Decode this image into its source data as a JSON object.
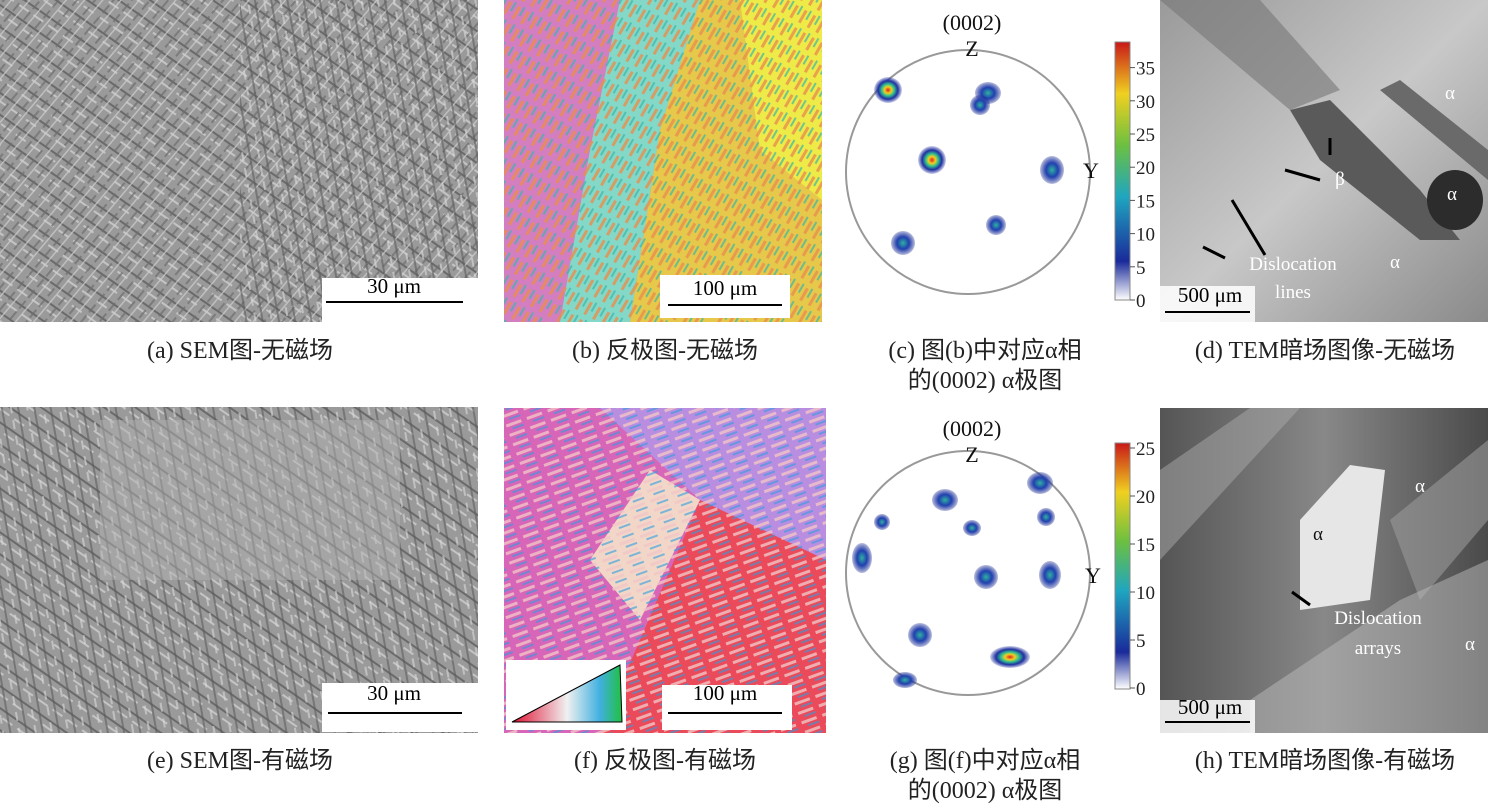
{
  "panels": [
    {
      "caption": [
        "(a) SEM图-无磁场"
      ],
      "scale_bar": "30 μm"
    },
    {
      "caption": [
        "(b) 反极图-无磁场"
      ],
      "scale_bar": "100 μm"
    },
    {
      "caption": [
        "(c) 图(b)中对应α相",
        "的(0002) α极图"
      ],
      "pole_label": "(0002)",
      "axis_z": "Z",
      "axis_y": "Y",
      "colorbar_ticks": [
        0,
        5,
        10,
        15,
        20,
        25,
        30,
        35
      ]
    },
    {
      "caption": [
        "(d) TEM暗场图像-无磁场"
      ],
      "scale_bar": "500 μm",
      "annotations": [
        "α",
        "β",
        "α",
        "α",
        "Dislocation",
        "lines"
      ]
    },
    {
      "caption": [
        "(e) SEM图-有磁场"
      ],
      "scale_bar": "30 μm"
    },
    {
      "caption": [
        "(f) 反极图-有磁场"
      ],
      "scale_bar": "100 μm"
    },
    {
      "caption": [
        "(g) 图(f)中对应α相",
        "的(0002) α极图"
      ],
      "pole_label": "(0002)",
      "axis_z": "Z",
      "axis_y": "Y",
      "colorbar_ticks": [
        0,
        5,
        10,
        15,
        20,
        25
      ]
    },
    {
      "caption": [
        "(h) TEM暗场图像-有磁场"
      ],
      "scale_bar": "500 μm",
      "annotations": [
        "α",
        "α",
        "Dislocation",
        "arrays",
        "α"
      ]
    }
  ]
}
